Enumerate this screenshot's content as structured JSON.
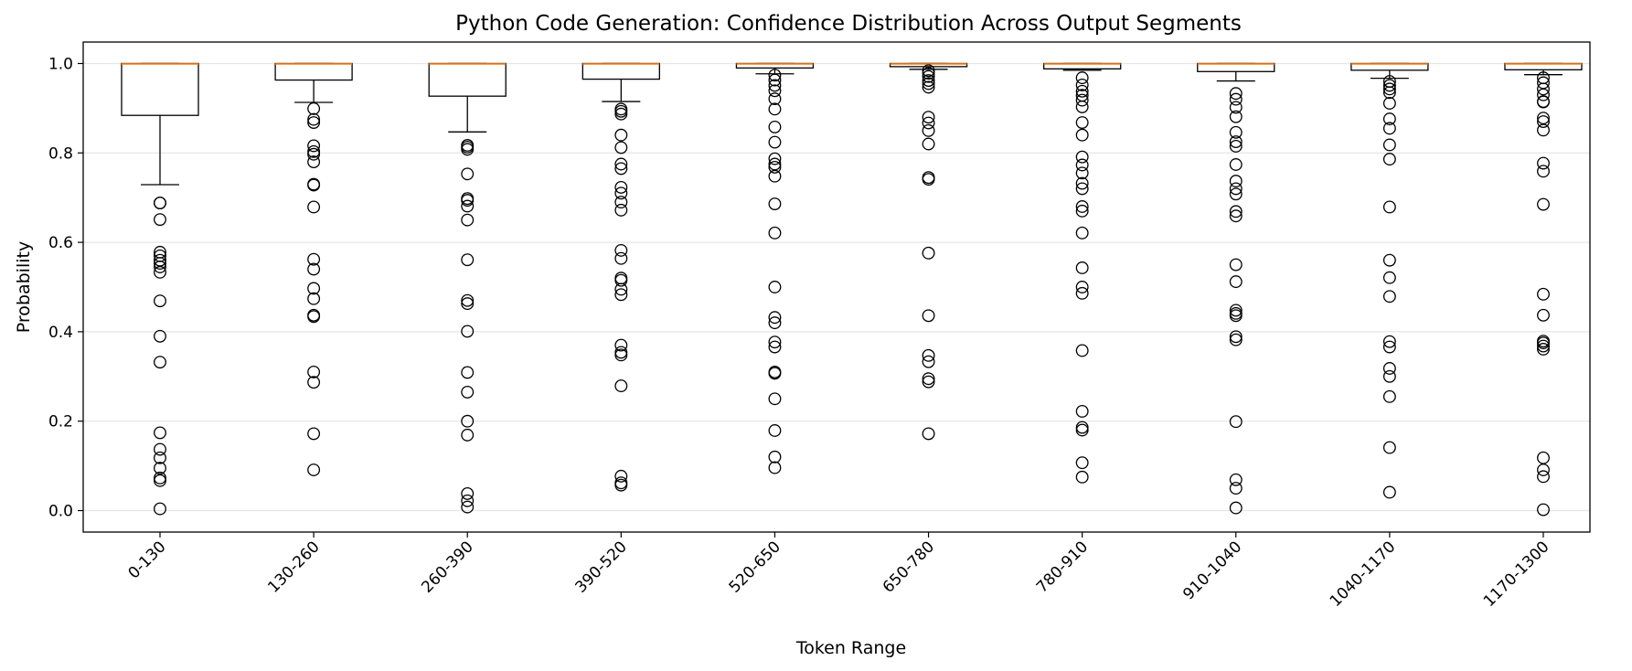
{
  "chart_data": {
    "type": "boxplot",
    "title": "Python Code Generation: Confidence Distribution Across Output Segments",
    "xlabel": "Token Range",
    "ylabel": "Probability",
    "ylim": [
      -0.048,
      1.048
    ],
    "yticks": [
      0.0,
      0.2,
      0.4,
      0.6,
      0.8,
      1.0
    ],
    "ytick_labels": [
      "0.0",
      "0.2",
      "0.4",
      "0.6",
      "0.8",
      "1.0"
    ],
    "grid": "horizontal",
    "categories": [
      "0-130",
      "130-260",
      "260-390",
      "390-520",
      "520-650",
      "650-780",
      "780-910",
      "910-1040",
      "1040-1170",
      "1170-1300"
    ],
    "boxes": [
      {
        "q1": 0.884,
        "median": 0.999,
        "q3": 1.0,
        "whisker_low": 0.729,
        "whisker_high": 1.0,
        "outliers": [
          0.688,
          0.688,
          0.651,
          0.578,
          0.57,
          0.56,
          0.553,
          0.545,
          0.533,
          0.469,
          0.39,
          0.332,
          0.174,
          0.137,
          0.118,
          0.095,
          0.073,
          0.067,
          0.004
        ]
      },
      {
        "q1": 0.963,
        "median": 0.999,
        "q3": 1.0,
        "whisker_low": 0.913,
        "whisker_high": 1.0,
        "outliers": [
          0.899,
          0.875,
          0.868,
          0.816,
          0.803,
          0.797,
          0.78,
          0.73,
          0.728,
          0.679,
          0.562,
          0.54,
          0.497,
          0.474,
          0.437,
          0.434,
          0.31,
          0.287,
          0.172,
          0.091
        ]
      },
      {
        "q1": 0.927,
        "median": 0.999,
        "q3": 1.0,
        "whisker_low": 0.847,
        "whisker_high": 1.0,
        "outliers": [
          0.817,
          0.813,
          0.808,
          0.753,
          0.698,
          0.694,
          0.681,
          0.65,
          0.561,
          0.47,
          0.463,
          0.401,
          0.309,
          0.265,
          0.2,
          0.169,
          0.038,
          0.022,
          0.008
        ]
      },
      {
        "q1": 0.965,
        "median": 0.999,
        "q3": 1.0,
        "whisker_low": 0.915,
        "whisker_high": 1.0,
        "outliers": [
          0.898,
          0.893,
          0.887,
          0.84,
          0.812,
          0.775,
          0.765,
          0.723,
          0.71,
          0.69,
          0.672,
          0.582,
          0.564,
          0.52,
          0.515,
          0.495,
          0.483,
          0.37,
          0.354,
          0.348,
          0.279,
          0.077,
          0.062,
          0.057
        ]
      },
      {
        "q1": 0.99,
        "median": 0.999,
        "q3": 1.0,
        "whisker_low": 0.977,
        "whisker_high": 1.0,
        "outliers": [
          0.974,
          0.963,
          0.951,
          0.939,
          0.921,
          0.898,
          0.858,
          0.824,
          0.787,
          0.775,
          0.768,
          0.748,
          0.686,
          0.621,
          0.5,
          0.432,
          0.42,
          0.377,
          0.366,
          0.31,
          0.307,
          0.25,
          0.179,
          0.12,
          0.096
        ]
      },
      {
        "q1": 0.993,
        "median": 0.999,
        "q3": 1.0,
        "whisker_low": 0.987,
        "whisker_high": 1.0,
        "outliers": [
          0.984,
          0.978,
          0.971,
          0.962,
          0.955,
          0.947,
          0.88,
          0.867,
          0.85,
          0.82,
          0.745,
          0.741,
          0.576,
          0.436,
          0.347,
          0.333,
          0.295,
          0.288,
          0.172
        ]
      },
      {
        "q1": 0.988,
        "median": 0.999,
        "q3": 1.0,
        "whisker_low": 0.985,
        "whisker_high": 1.0,
        "outliers": [
          0.968,
          0.952,
          0.938,
          0.929,
          0.918,
          0.903,
          0.868,
          0.84,
          0.791,
          0.773,
          0.755,
          0.732,
          0.72,
          0.68,
          0.67,
          0.621,
          0.543,
          0.5,
          0.486,
          0.358,
          0.222,
          0.186,
          0.18,
          0.107,
          0.075
        ]
      },
      {
        "q1": 0.982,
        "median": 0.999,
        "q3": 1.0,
        "whisker_low": 0.961,
        "whisker_high": 1.0,
        "outliers": [
          0.933,
          0.92,
          0.902,
          0.881,
          0.846,
          0.825,
          0.815,
          0.774,
          0.737,
          0.72,
          0.708,
          0.669,
          0.659,
          0.55,
          0.512,
          0.448,
          0.441,
          0.436,
          0.389,
          0.382,
          0.199,
          0.069,
          0.05,
          0.006
        ]
      },
      {
        "q1": 0.985,
        "median": 0.999,
        "q3": 1.0,
        "whisker_low": 0.967,
        "whisker_high": 1.0,
        "outliers": [
          0.96,
          0.951,
          0.943,
          0.935,
          0.911,
          0.876,
          0.855,
          0.818,
          0.786,
          0.679,
          0.56,
          0.521,
          0.479,
          0.378,
          0.366,
          0.318,
          0.3,
          0.255,
          0.141,
          0.041
        ]
      },
      {
        "q1": 0.986,
        "median": 0.999,
        "q3": 1.0,
        "whisker_low": 0.975,
        "whisker_high": 1.0,
        "outliers": [
          0.968,
          0.957,
          0.943,
          0.93,
          0.915,
          0.914,
          0.878,
          0.87,
          0.851,
          0.777,
          0.759,
          0.685,
          0.484,
          0.437,
          0.379,
          0.375,
          0.368,
          0.361,
          0.118,
          0.091,
          0.076,
          0.002
        ]
      }
    ]
  },
  "colors": {
    "median": "#ff7f0e",
    "box": "#000000",
    "grid": "#e6e6e6",
    "background": "#ffffff"
  }
}
